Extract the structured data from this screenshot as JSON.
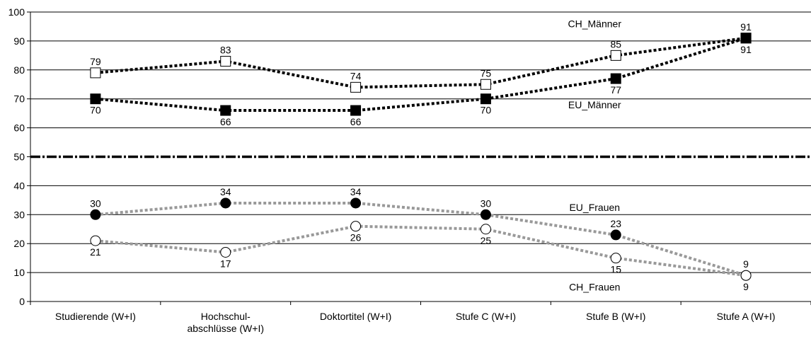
{
  "chart_data": {
    "type": "line",
    "categories": [
      [
        "Studierende (W+I)"
      ],
      [
        "Hochschul-",
        "abschlüsse (W+I)"
      ],
      [
        "Doktortitel (W+I)"
      ],
      [
        "Stufe C (W+I)"
      ],
      [
        "Stufe B (W+I)"
      ],
      [
        "Stufe A (W+I)"
      ]
    ],
    "ylim": [
      0,
      100
    ],
    "yticks": [
      0,
      10,
      20,
      30,
      40,
      50,
      60,
      70,
      80,
      90,
      100
    ],
    "grid": true,
    "reference_line": 50,
    "series": [
      {
        "name": "CH_Männer",
        "values": [
          79,
          83,
          74,
          75,
          85,
          91
        ],
        "color": "#000000",
        "marker": "square-open",
        "label_pos": "above"
      },
      {
        "name": "EU_Männer",
        "values": [
          70,
          66,
          66,
          70,
          77,
          91
        ],
        "color": "#000000",
        "marker": "square-filled",
        "label_pos": "below"
      },
      {
        "name": "EU_Frauen",
        "values": [
          30,
          34,
          34,
          30,
          23,
          9
        ],
        "color": "#999999",
        "marker": "circle-filled",
        "label_pos": "above"
      },
      {
        "name": "CH_Frauen",
        "values": [
          21,
          17,
          26,
          25,
          15,
          9
        ],
        "color": "#999999",
        "marker": "circle-open",
        "label_pos": "below"
      }
    ]
  }
}
